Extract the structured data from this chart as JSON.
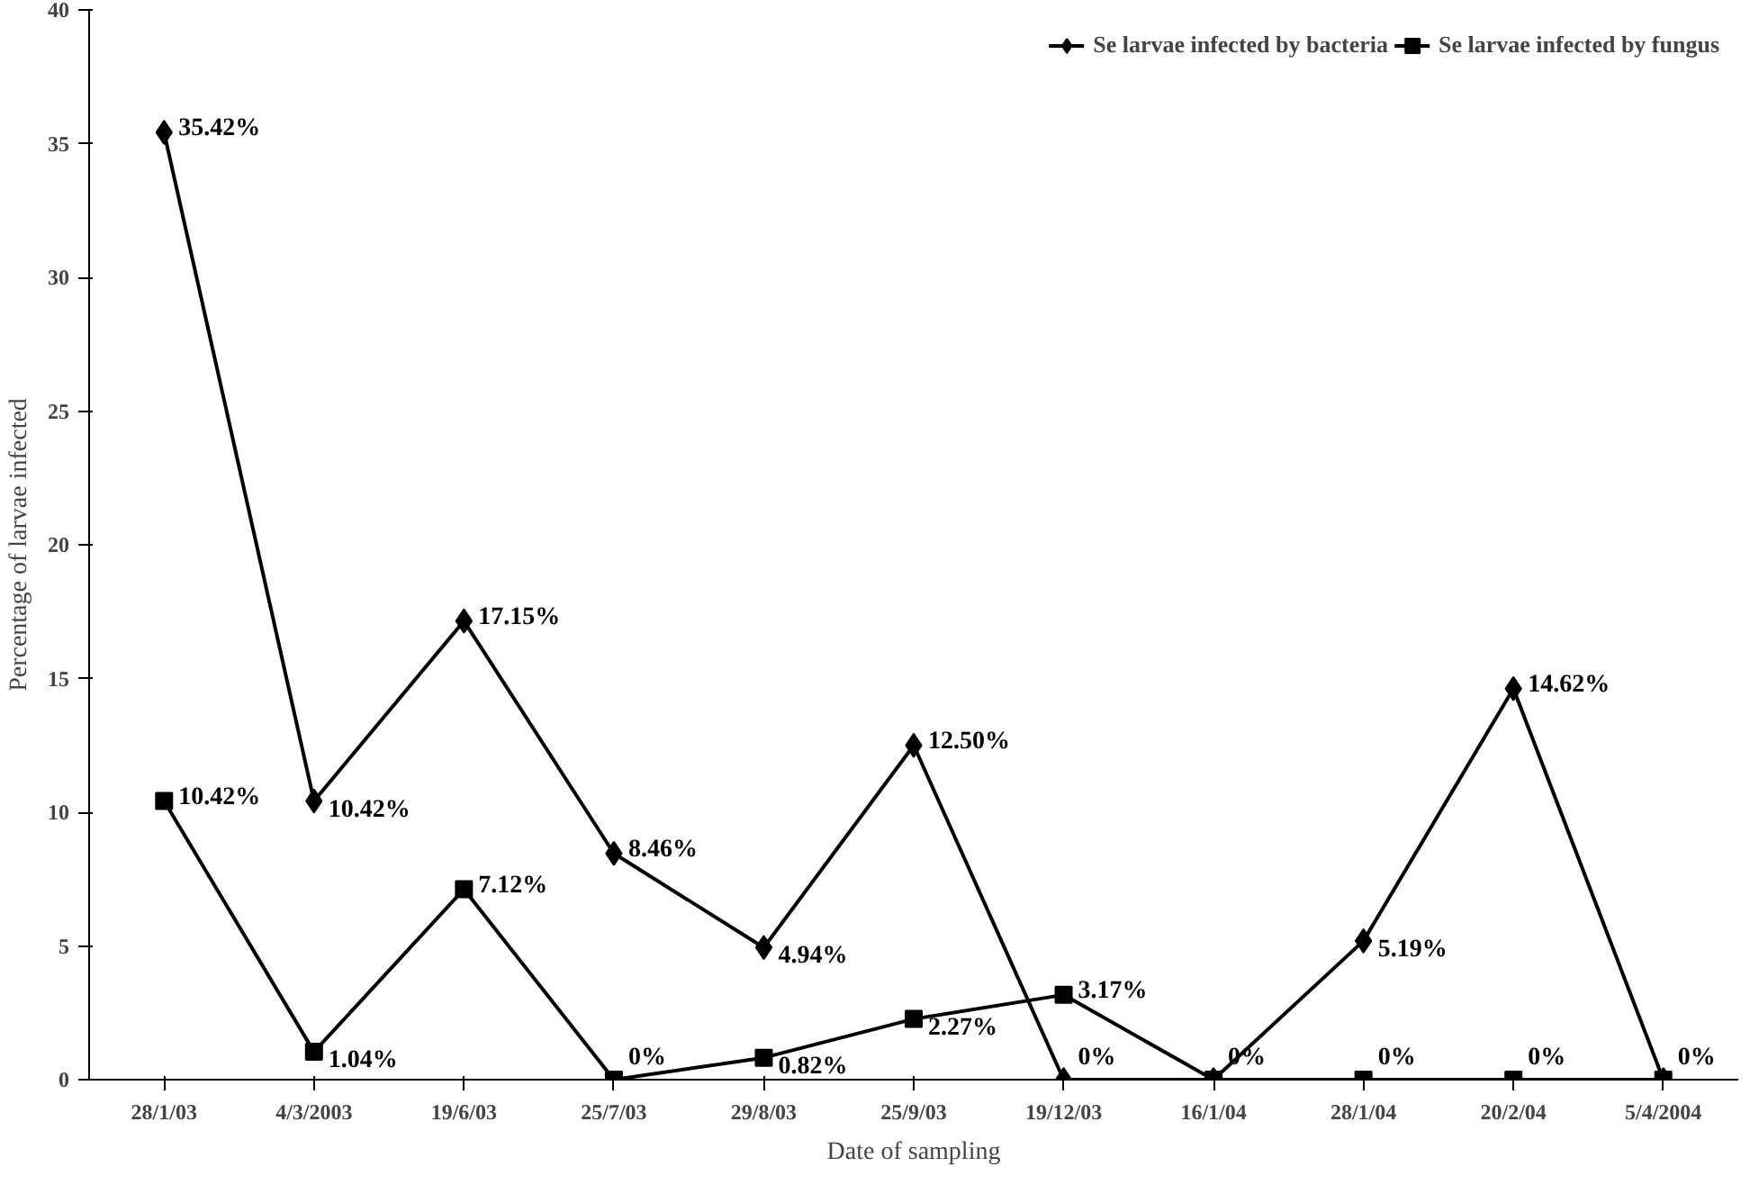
{
  "chart_data": {
    "type": "line",
    "xlabel": "Date of sampling",
    "ylabel": "Percentage of larvae infected",
    "categories": [
      "28/1/03",
      "4/3/2003",
      "19/6/03",
      "25/7/03",
      "29/8/03",
      "25/9/03",
      "19/12/03",
      "16/1/04",
      "28/1/04",
      "20/2/04",
      "5/4/2004"
    ],
    "ylim": [
      0,
      40
    ],
    "yticks": [
      0,
      5,
      10,
      15,
      20,
      25,
      30,
      35,
      40
    ],
    "grid": false,
    "legend": "top right",
    "line_style": "solid",
    "series": [
      {
        "name": "Se larvae infected by bacteria",
        "color": "#000000",
        "marker": "diamond",
        "values": [
          35.42,
          10.42,
          17.15,
          8.46,
          4.94,
          12.5,
          0,
          0,
          5.19,
          14.62,
          0
        ],
        "value_labels": [
          "35.42%",
          "10.42%",
          "17.15%",
          "8.46%",
          "4.94%",
          "12.50%",
          "0%",
          "0%",
          "5.19%",
          "14.62%",
          "0%"
        ]
      },
      {
        "name": "Se larvae infected by fungus",
        "color": "#000000",
        "marker": "square",
        "values": [
          10.42,
          1.04,
          7.12,
          0,
          0.82,
          2.27,
          3.17,
          0,
          0,
          0,
          0
        ],
        "value_labels": [
          "10.42%",
          "1.04%",
          "7.12%",
          "0%",
          "0.82%",
          "2.27%",
          "3.17%",
          null,
          "0%",
          "0%",
          null
        ]
      }
    ]
  }
}
